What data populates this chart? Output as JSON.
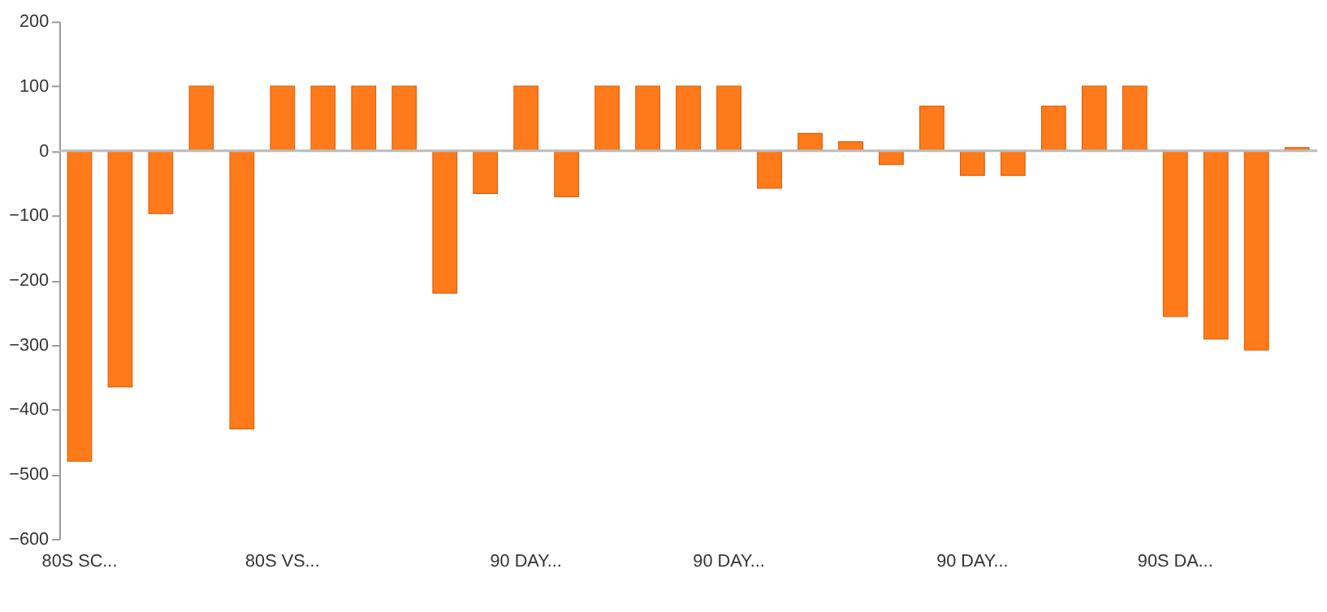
{
  "chart_data": {
    "type": "bar",
    "categories": [
      "80S SC...",
      null,
      null,
      null,
      null,
      "80S VS...",
      null,
      null,
      null,
      null,
      null,
      "90 DAY...",
      null,
      null,
      null,
      null,
      "90 DAY...",
      null,
      null,
      null,
      null,
      null,
      "90 DAY...",
      null,
      null,
      null,
      null,
      "90S DA...",
      null,
      null,
      null
    ],
    "values": [
      -480,
      -365,
      -97,
      100,
      -430,
      100,
      100,
      100,
      100,
      -220,
      -66,
      100,
      -71,
      100,
      100,
      100,
      100,
      -58,
      27,
      14,
      -21,
      69,
      -38,
      -38,
      69,
      100,
      100,
      -256,
      -291,
      -308,
      5
    ],
    "color": "#ff7a1a",
    "ylim": [
      -600,
      200
    ],
    "yticks": [
      200,
      100,
      0,
      -100,
      -200,
      -300,
      -400,
      -500,
      -600
    ],
    "ref_lines": [
      {
        "axis": "y",
        "value": 0,
        "color": "#bbbbbb"
      }
    ],
    "grid": false
  }
}
